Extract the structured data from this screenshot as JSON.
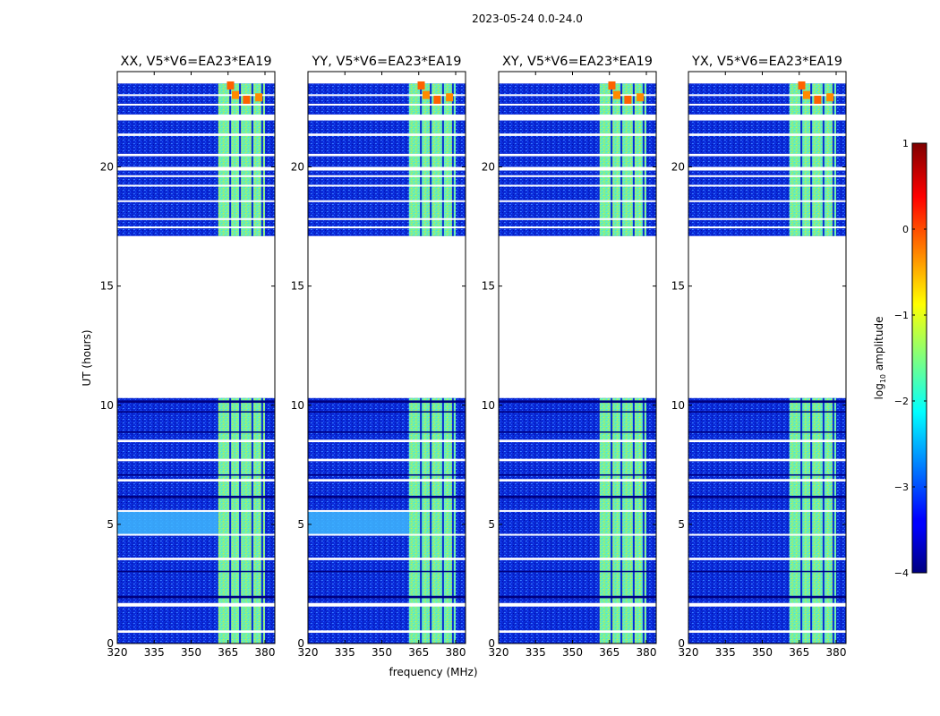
{
  "chart_data": {
    "type": "heatmap",
    "suptitle": "2023-05-24 0.0-24.0",
    "xlabel": "frequency (MHz)",
    "ylabel": "UT (hours)",
    "xlim": [
      320,
      384
    ],
    "ylim": [
      0,
      24
    ],
    "x_ticks": [
      320,
      335,
      350,
      365,
      380
    ],
    "y_ticks": [
      0,
      5,
      10,
      15,
      20
    ],
    "panels": [
      {
        "title": "XX, V5*V6=EA23*EA19"
      },
      {
        "title": "YY, V5*V6=EA23*EA19"
      },
      {
        "title": "XY, V5*V6=EA23*EA19"
      },
      {
        "title": "YX, V5*V6=EA23*EA19"
      }
    ],
    "colorbar": {
      "label_prefix": "log",
      "label_sub": "10",
      "label_suffix": " amplitude",
      "range": [
        -4,
        1
      ],
      "ticks": [
        1,
        0,
        -1,
        -2,
        -3,
        -4
      ]
    },
    "data_gap_hours": [
      10.3,
      17.1
    ],
    "flagged_band_mhz": [
      361,
      380
    ],
    "background_log10_amplitude": -3.1,
    "band_log10_amplitude": -1.3
  }
}
